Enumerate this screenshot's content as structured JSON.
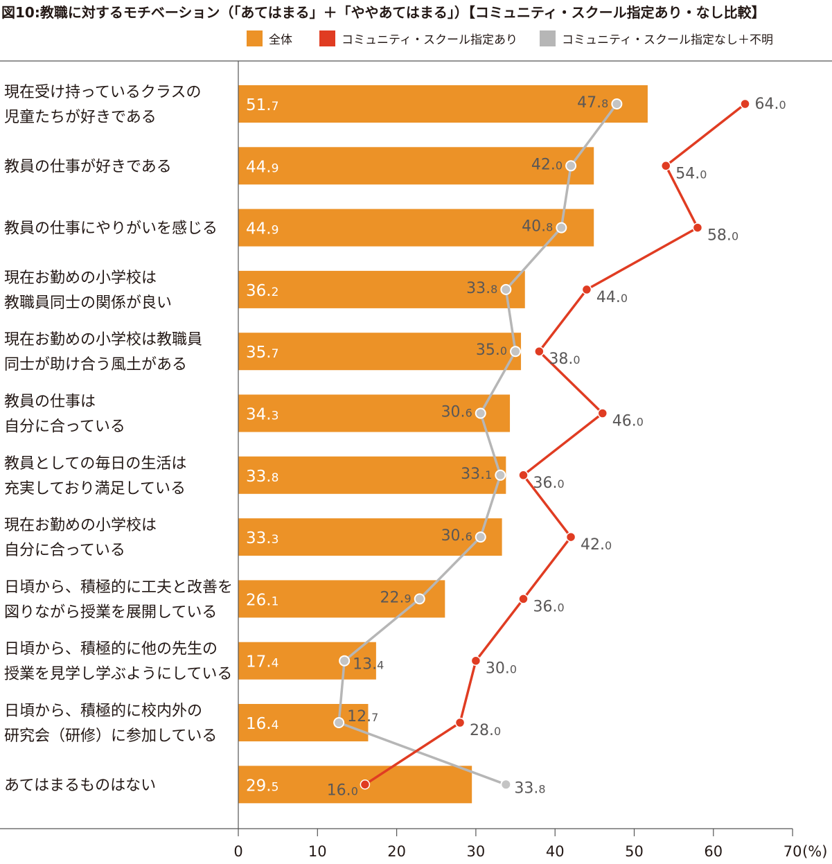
{
  "chart_data": {
    "type": "bar",
    "title": "図10:教職に対するモチベーション（「あてはまる」＋「ややあてはまる」）【コミュニティ・スクール指定あり・なし比較】",
    "unit_label": "(%)",
    "categories": [
      [
        "現在受け持っているクラスの",
        "児童たちが好きである"
      ],
      [
        "教員の仕事が好きである"
      ],
      [
        "教員の仕事にやりがいを感じる"
      ],
      [
        "現在お勤めの小学校は",
        "教職員同士の関係が良い"
      ],
      [
        "現在お勤めの小学校は教職員",
        "同士が助け合う風土がある"
      ],
      [
        "教員の仕事は",
        "自分に合っている"
      ],
      [
        "教員としての毎日の生活は",
        "充実しており満足している"
      ],
      [
        "現在お勤めの小学校は",
        "自分に合っている"
      ],
      [
        "日頃から、積極的に工夫と改善を",
        "図りながら授業を展開している"
      ],
      [
        "日頃から、積極的に他の先生の",
        "授業を見学し学ぶようにしている"
      ],
      [
        "日頃から、積極的に校内外の",
        "研究会（研修）に参加している"
      ],
      [
        "あてはまるものはない"
      ]
    ],
    "series": [
      {
        "name": "全体",
        "type": "bar",
        "color": "#ec9227",
        "values": [
          51.7,
          44.9,
          44.9,
          36.2,
          35.7,
          34.3,
          33.8,
          33.3,
          26.1,
          17.4,
          16.4,
          29.5
        ]
      },
      {
        "name": "コミュニティ・スクール指定あり",
        "type": "line",
        "color": "#e03c22",
        "values": [
          64.0,
          54.0,
          58.0,
          44.0,
          38.0,
          46.0,
          36.0,
          42.0,
          36.0,
          30.0,
          28.0,
          16.0
        ]
      },
      {
        "name": "コミュニティ・スクール指定なし＋不明",
        "type": "line",
        "color": "#b6b6b6",
        "values": [
          47.8,
          42.0,
          40.8,
          33.8,
          35.0,
          30.6,
          33.1,
          30.6,
          22.9,
          13.4,
          12.7,
          33.8
        ]
      }
    ],
    "xlim": [
      0,
      70
    ],
    "xticks": [
      "0",
      "10",
      "20",
      "30",
      "40",
      "50",
      "60",
      "70"
    ],
    "legend_position": "top-right",
    "grid": false
  }
}
